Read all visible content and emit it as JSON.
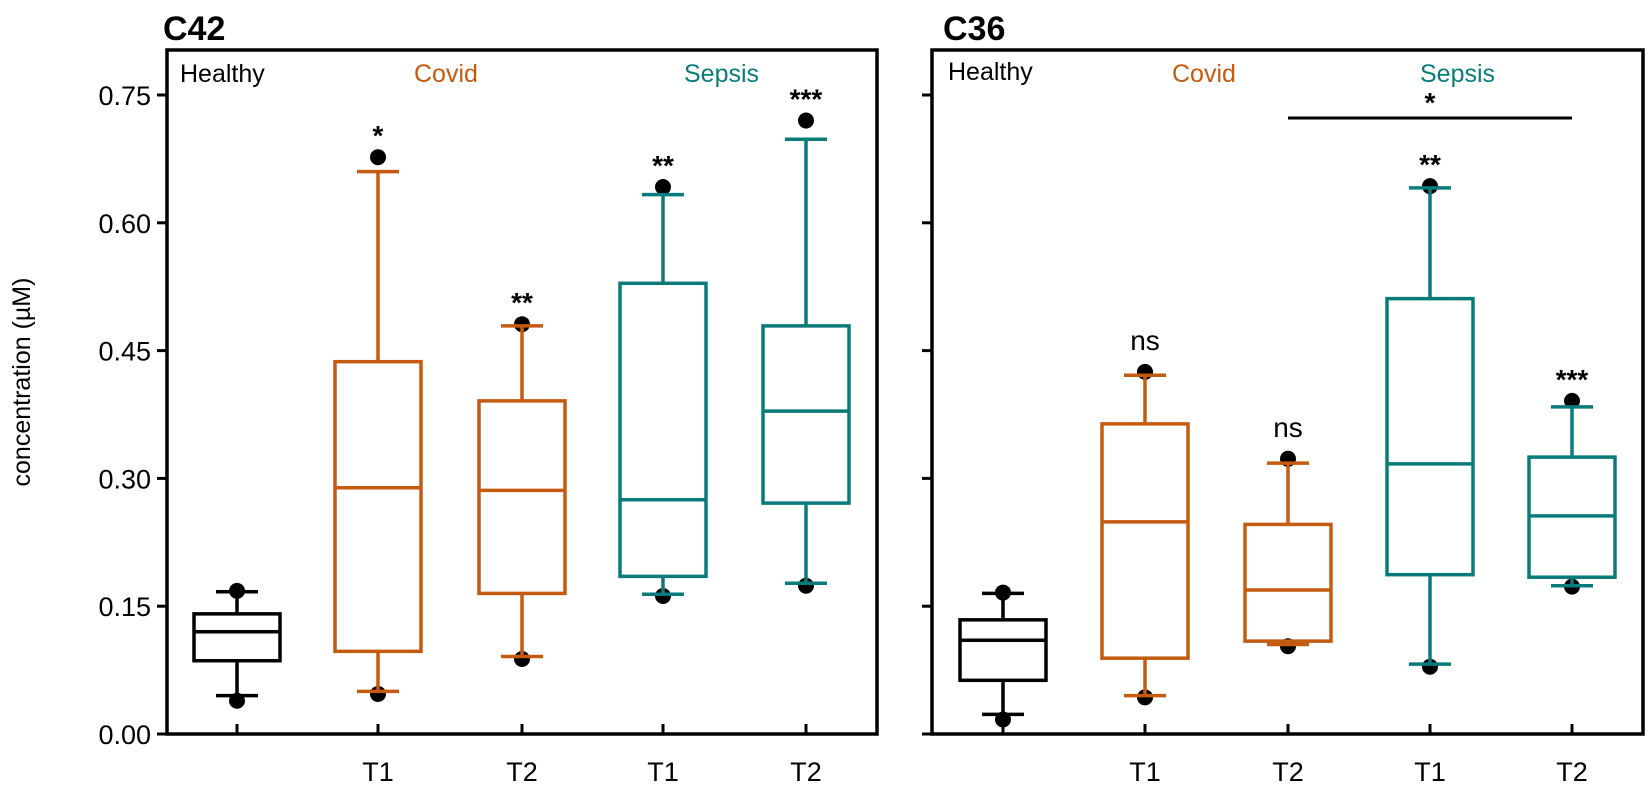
{
  "colors": {
    "Healthy": "#000000",
    "Covid": "#C55A11",
    "Sepsis": "#0A7B7B"
  },
  "chart_data": [
    {
      "type": "box",
      "title": "C42",
      "xlabel": "",
      "ylabel": "concentration (µM)",
      "ylim": [
        0,
        0.75
      ],
      "yticks": [
        "0.00",
        "0.15",
        "0.30",
        "0.45",
        "0.60",
        "0.75"
      ],
      "ytick_values": [
        0,
        0.15,
        0.3,
        0.45,
        0.6,
        0.75
      ],
      "show_ytick_labels": true,
      "group_labels": [
        "Healthy",
        "Covid",
        "Sepsis"
      ],
      "categories": [
        "",
        "T1",
        "T2",
        "T1",
        "T2"
      ],
      "boxes": [
        {
          "group": "Healthy",
          "label": "",
          "whisker_low": 0.045,
          "q1": 0.086,
          "median": 0.12,
          "q3": 0.141,
          "whisker_high": 0.167,
          "outliers": [
            0.039,
            0.168
          ],
          "significance": ""
        },
        {
          "group": "Covid",
          "label": "T1",
          "whisker_low": 0.05,
          "q1": 0.097,
          "median": 0.289,
          "q3": 0.437,
          "whisker_high": 0.66,
          "outliers": [
            0.047,
            0.677
          ],
          "significance": "*"
        },
        {
          "group": "Covid",
          "label": "T2",
          "whisker_low": 0.091,
          "q1": 0.165,
          "median": 0.286,
          "q3": 0.391,
          "whisker_high": 0.479,
          "outliers": [
            0.088,
            0.481
          ],
          "significance": "**"
        },
        {
          "group": "Sepsis",
          "label": "T1",
          "whisker_low": 0.164,
          "q1": 0.185,
          "median": 0.275,
          "q3": 0.529,
          "whisker_high": 0.633,
          "outliers": [
            0.162,
            0.642
          ],
          "significance": "**"
        },
        {
          "group": "Sepsis",
          "label": "T2",
          "whisker_low": 0.177,
          "q1": 0.271,
          "median": 0.379,
          "q3": 0.479,
          "whisker_high": 0.698,
          "outliers": [
            0.174,
            0.72
          ],
          "significance": "***"
        }
      ],
      "brackets": []
    },
    {
      "type": "box",
      "title": "C36",
      "xlabel": "",
      "ylabel": "",
      "ylim": [
        0,
        0.75
      ],
      "yticks": [
        "0.00",
        "0.15",
        "0.30",
        "0.45",
        "0.60",
        "0.75"
      ],
      "ytick_values": [
        0,
        0.15,
        0.3,
        0.45,
        0.6,
        0.75
      ],
      "show_ytick_labels": false,
      "group_labels": [
        "Healthy",
        "Covid",
        "Sepsis"
      ],
      "categories": [
        "",
        "T1",
        "T2",
        "T1",
        "T2"
      ],
      "boxes": [
        {
          "group": "Healthy",
          "label": "",
          "whisker_low": 0.023,
          "q1": 0.063,
          "median": 0.11,
          "q3": 0.134,
          "whisker_high": 0.165,
          "outliers": [
            0.017,
            0.166
          ],
          "significance": ""
        },
        {
          "group": "Covid",
          "label": "T1",
          "whisker_low": 0.045,
          "q1": 0.089,
          "median": 0.249,
          "q3": 0.364,
          "whisker_high": 0.421,
          "outliers": [
            0.043,
            0.425
          ],
          "significance": "ns"
        },
        {
          "group": "Covid",
          "label": "T2",
          "whisker_low": 0.105,
          "q1": 0.109,
          "median": 0.169,
          "q3": 0.246,
          "whisker_high": 0.318,
          "outliers": [
            0.103,
            0.323
          ],
          "significance": "ns"
        },
        {
          "group": "Sepsis",
          "label": "T1",
          "whisker_low": 0.082,
          "q1": 0.187,
          "median": 0.317,
          "q3": 0.511,
          "whisker_high": 0.641,
          "outliers": [
            0.079,
            0.643
          ],
          "significance": "**"
        },
        {
          "group": "Sepsis",
          "label": "T2",
          "whisker_low": 0.174,
          "q1": 0.184,
          "median": 0.256,
          "q3": 0.325,
          "whisker_high": 0.384,
          "outliers": [
            0.173,
            0.391
          ],
          "significance": "***"
        }
      ],
      "brackets": [
        {
          "from_box": 2,
          "to_box": 4,
          "value": 0.723,
          "label": "*"
        }
      ]
    }
  ]
}
